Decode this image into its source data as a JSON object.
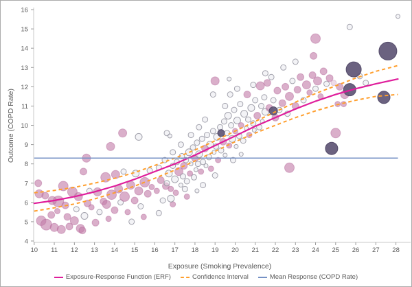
{
  "figure": {
    "background": "#ffffff",
    "border_color": "#ababab",
    "axis_line_color": "#c8c8c8",
    "tick_mark_color": "#999999",
    "tick_label_color": "#595959"
  },
  "chart_data": {
    "type": "scatter",
    "title": "",
    "xlabel": "Exposure (Smoking Prevalence)",
    "ylabel": "Outcome (COPD Rate)",
    "xlim": [
      10,
      28.5
    ],
    "ylim": [
      4,
      16
    ],
    "x_ticks": [
      10,
      11,
      12,
      13,
      14,
      15,
      16,
      17,
      18,
      19,
      20,
      21,
      22,
      23,
      24,
      25,
      26,
      27,
      28
    ],
    "y_ticks": [
      4,
      5,
      6,
      7,
      8,
      9,
      10,
      11,
      12,
      13,
      14,
      15,
      16
    ],
    "grid": false,
    "legend_position": "bottom",
    "erf": {
      "label": "Exposure-Response Function (ERF)",
      "color": "#df1d9b",
      "x": [
        10,
        11,
        12,
        13,
        14,
        15,
        16,
        17,
        18,
        19,
        20,
        21,
        22,
        23,
        24,
        25,
        26,
        27,
        28.1
      ],
      "y": [
        5.95,
        6.1,
        6.3,
        6.55,
        6.85,
        7.2,
        7.6,
        8.0,
        8.45,
        8.95,
        9.45,
        9.95,
        10.4,
        10.85,
        11.25,
        11.6,
        11.9,
        12.15,
        12.4
      ]
    },
    "ci": {
      "label": "Confidence Interval",
      "color": "#ff9e2c",
      "x": [
        10,
        11,
        12,
        13,
        14,
        15,
        16,
        17,
        18,
        19,
        20,
        21,
        22,
        23,
        24,
        25,
        26,
        27,
        28.1
      ],
      "upper": [
        6.5,
        6.62,
        6.78,
        7.0,
        7.25,
        7.55,
        7.92,
        8.3,
        8.72,
        9.2,
        9.7,
        10.2,
        10.7,
        11.2,
        11.65,
        12.05,
        12.45,
        12.8,
        13.1
      ],
      "lower": [
        5.55,
        5.72,
        5.92,
        6.18,
        6.5,
        6.85,
        7.25,
        7.68,
        8.15,
        8.65,
        9.15,
        9.6,
        10.0,
        10.4,
        10.75,
        11.05,
        11.3,
        11.5,
        11.6
      ]
    },
    "mean": {
      "label": "Mean Response (COPD Rate)",
      "color": "#7591c5",
      "value": 8.3,
      "x_range": [
        10,
        28.1
      ]
    },
    "point_styles": {
      "g": {
        "fill": "rgba(228,228,236,0.45)",
        "stroke": "rgba(148,148,160,0.85)"
      },
      "p": {
        "fill": "rgba(194,122,166,0.60)",
        "stroke": "rgba(178,100,150,0.45)"
      },
      "pl": {
        "fill": "rgba(219,176,203,0.45)",
        "stroke": "rgba(190,140,175,0.4)"
      },
      "d": {
        "fill": "rgba(94,85,117,0.92)",
        "stroke": "rgba(80,72,102,0.95)"
      }
    },
    "points": [
      [
        10.25,
        6.45,
        6,
        "p"
      ],
      [
        10.55,
        6.35,
        5,
        "p"
      ],
      [
        10.35,
        5.05,
        7,
        "p"
      ],
      [
        10.6,
        4.85,
        8,
        "p"
      ],
      [
        10.85,
        5.35,
        5,
        "p"
      ],
      [
        11.0,
        4.7,
        6,
        "p"
      ],
      [
        11.15,
        5.55,
        4,
        "p"
      ],
      [
        11.35,
        4.6,
        6,
        "p"
      ],
      [
        11.2,
        6.05,
        8,
        "p"
      ],
      [
        10.9,
        6.1,
        6,
        "p"
      ],
      [
        11.55,
        5.85,
        5,
        "p"
      ],
      [
        11.65,
        5.25,
        5,
        "p"
      ],
      [
        11.75,
        4.75,
        5,
        "p"
      ],
      [
        12.0,
        5.05,
        6,
        "p"
      ],
      [
        12.1,
        5.65,
        4,
        "g"
      ],
      [
        12.3,
        4.65,
        6,
        "p"
      ],
      [
        12.5,
        5.3,
        5,
        "g"
      ],
      [
        12.65,
        5.95,
        5,
        "p"
      ],
      [
        12.2,
        6.3,
        6,
        "p"
      ],
      [
        11.9,
        6.55,
        7,
        "p"
      ],
      [
        12.85,
        5.75,
        4,
        "p"
      ],
      [
        13.05,
        4.95,
        5,
        "p"
      ],
      [
        13.25,
        5.5,
        4,
        "g"
      ],
      [
        13.45,
        6.05,
        5,
        "p"
      ],
      [
        12.4,
        4.55,
        5,
        "p"
      ],
      [
        11.45,
        6.85,
        7,
        "p"
      ],
      [
        10.2,
        7.0,
        5,
        "p"
      ],
      [
        13.7,
        5.15,
        4,
        "p"
      ],
      [
        12.75,
        6.6,
        4,
        "g"
      ],
      [
        13.15,
        6.55,
        6,
        "p"
      ],
      [
        13.6,
        5.9,
        6,
        "p"
      ],
      [
        13.85,
        6.4,
        7,
        "p"
      ],
      [
        14.0,
        5.6,
        5,
        "p"
      ],
      [
        14.2,
        6.7,
        6,
        "p"
      ],
      [
        14.3,
        6.0,
        4,
        "g"
      ],
      [
        14.5,
        6.3,
        7,
        "p"
      ],
      [
        14.65,
        5.5,
        4,
        "p"
      ],
      [
        14.8,
        6.9,
        6,
        "p"
      ],
      [
        15.0,
        6.1,
        5,
        "p"
      ],
      [
        15.2,
        6.6,
        6,
        "p"
      ],
      [
        15.3,
        5.8,
        4,
        "g"
      ],
      [
        15.5,
        7.05,
        7,
        "p"
      ],
      [
        15.65,
        6.45,
        5,
        "p"
      ],
      [
        15.85,
        6.8,
        4,
        "p"
      ],
      [
        16.1,
        6.6,
        4,
        "p"
      ],
      [
        16.3,
        7.15,
        5,
        "p"
      ],
      [
        14.85,
        5.0,
        4,
        "g"
      ],
      [
        15.45,
        5.25,
        4,
        "p"
      ],
      [
        16.2,
        5.45,
        4,
        "g"
      ],
      [
        14.05,
        7.45,
        6,
        "p"
      ],
      [
        13.55,
        7.3,
        7,
        "p"
      ],
      [
        14.45,
        7.6,
        4,
        "g"
      ],
      [
        15.05,
        7.5,
        5,
        "g"
      ],
      [
        15.75,
        7.65,
        4,
        "g"
      ],
      [
        16.4,
        6.1,
        4,
        "g"
      ],
      [
        16.55,
        6.85,
        5,
        "p"
      ],
      [
        12.45,
        7.6,
        5,
        "p"
      ],
      [
        12.6,
        8.3,
        6,
        "p"
      ],
      [
        13.8,
        8.9,
        6,
        "p"
      ],
      [
        14.4,
        9.6,
        6,
        "p"
      ],
      [
        15.2,
        9.4,
        5,
        "g"
      ],
      [
        16.6,
        9.6,
        4,
        "g"
      ],
      [
        16.75,
        9.45,
        3,
        "g"
      ],
      [
        16.6,
        7.0,
        4,
        "g"
      ],
      [
        16.7,
        7.5,
        5,
        "g"
      ],
      [
        16.8,
        6.7,
        4,
        "p"
      ],
      [
        16.9,
        7.9,
        4,
        "g"
      ],
      [
        17.0,
        7.2,
        5,
        "g"
      ],
      [
        17.05,
        6.5,
        4,
        "p"
      ],
      [
        17.1,
        8.1,
        4,
        "g"
      ],
      [
        17.2,
        7.6,
        6,
        "p"
      ],
      [
        17.3,
        6.9,
        3,
        "g"
      ],
      [
        17.35,
        8.4,
        4,
        "g"
      ],
      [
        17.4,
        7.35,
        4,
        "g"
      ],
      [
        17.45,
        7.9,
        5,
        "p"
      ],
      [
        17.55,
        8.2,
        4,
        "g"
      ],
      [
        17.6,
        7.1,
        4,
        "g"
      ],
      [
        17.7,
        8.6,
        5,
        "g"
      ],
      [
        17.75,
        7.5,
        4,
        "p"
      ],
      [
        17.8,
        8.0,
        3,
        "g"
      ],
      [
        17.9,
        8.85,
        4,
        "g"
      ],
      [
        17.95,
        7.3,
        4,
        "g"
      ],
      [
        18.0,
        8.3,
        5,
        "p"
      ],
      [
        18.05,
        7.7,
        3,
        "g"
      ],
      [
        18.1,
        9.1,
        4,
        "g"
      ],
      [
        18.15,
        8.0,
        4,
        "g"
      ],
      [
        18.2,
        8.5,
        5,
        "g"
      ],
      [
        18.3,
        7.6,
        4,
        "p"
      ],
      [
        18.35,
        9.3,
        4,
        "g"
      ],
      [
        18.4,
        8.1,
        4,
        "g"
      ],
      [
        18.5,
        8.8,
        5,
        "p"
      ],
      [
        18.55,
        7.9,
        3,
        "g"
      ],
      [
        18.6,
        9.5,
        4,
        "g"
      ],
      [
        18.7,
        8.35,
        4,
        "g"
      ],
      [
        18.75,
        9.0,
        5,
        "g"
      ],
      [
        18.8,
        7.75,
        4,
        "p"
      ],
      [
        18.9,
        9.7,
        4,
        "g"
      ],
      [
        18.95,
        8.6,
        3,
        "g"
      ],
      [
        19.0,
        12.3,
        6,
        "p"
      ],
      [
        18.9,
        11.6,
        4,
        "g"
      ],
      [
        19.05,
        8.9,
        4,
        "g"
      ],
      [
        19.1,
        9.4,
        5,
        "g"
      ],
      [
        19.15,
        8.2,
        4,
        "p"
      ],
      [
        19.25,
        9.9,
        4,
        "g"
      ],
      [
        19.3,
        8.7,
        4,
        "g"
      ],
      [
        19.4,
        9.15,
        5,
        "p"
      ],
      [
        19.45,
        10.2,
        4,
        "g"
      ],
      [
        19.5,
        8.45,
        3,
        "g"
      ],
      [
        19.6,
        9.6,
        4,
        "g"
      ],
      [
        19.65,
        10.5,
        5,
        "g"
      ],
      [
        19.7,
        8.95,
        4,
        "p"
      ],
      [
        19.75,
        11.6,
        4,
        "g"
      ],
      [
        19.8,
        10.0,
        4,
        "g"
      ],
      [
        19.85,
        9.3,
        5,
        "g"
      ],
      [
        19.95,
        10.8,
        4,
        "g"
      ],
      [
        20.0,
        9.7,
        4,
        "p"
      ],
      [
        20.05,
        8.9,
        3,
        "g"
      ],
      [
        20.1,
        10.25,
        5,
        "g"
      ],
      [
        20.2,
        9.45,
        4,
        "g"
      ],
      [
        20.25,
        11.1,
        4,
        "g"
      ],
      [
        20.3,
        10.0,
        4,
        "p"
      ],
      [
        20.4,
        9.2,
        4,
        "g"
      ],
      [
        20.45,
        10.6,
        5,
        "g"
      ],
      [
        20.55,
        9.85,
        3,
        "g"
      ],
      [
        20.6,
        11.6,
        5,
        "p"
      ],
      [
        20.65,
        10.3,
        4,
        "g"
      ],
      [
        20.7,
        9.5,
        4,
        "p"
      ],
      [
        20.8,
        10.9,
        5,
        "g"
      ],
      [
        20.9,
        10.1,
        4,
        "g"
      ],
      [
        20.95,
        9.75,
        3,
        "g"
      ],
      [
        21.0,
        11.3,
        4,
        "g"
      ],
      [
        21.1,
        10.5,
        5,
        "p"
      ],
      [
        21.2,
        9.9,
        4,
        "g"
      ],
      [
        21.3,
        11.0,
        4,
        "g"
      ],
      [
        21.35,
        10.2,
        3,
        "g"
      ],
      [
        21.45,
        11.45,
        4,
        "g"
      ],
      [
        21.5,
        10.7,
        5,
        "g"
      ],
      [
        21.5,
        12.7,
        4,
        "g"
      ],
      [
        21.8,
        12.5,
        4,
        "g"
      ],
      [
        17.6,
        6.3,
        4,
        "p"
      ],
      [
        18.4,
        6.9,
        4,
        "g"
      ],
      [
        19.0,
        7.4,
        4,
        "g"
      ],
      [
        19.9,
        8.2,
        4,
        "g"
      ],
      [
        18.1,
        6.6,
        3,
        "g"
      ],
      [
        20.3,
        8.5,
        3,
        "g"
      ],
      [
        16.9,
        5.9,
        4,
        "p"
      ],
      [
        16.8,
        6.2,
        5,
        "g"
      ],
      [
        17.5,
        6.7,
        4,
        "g"
      ],
      [
        18.5,
        10.3,
        4,
        "g"
      ],
      [
        19.5,
        11.0,
        4,
        "g"
      ],
      [
        20.1,
        11.9,
        4,
        "g"
      ],
      [
        20.9,
        12.1,
        4,
        "g"
      ],
      [
        19.7,
        12.4,
        3,
        "g"
      ],
      [
        18.2,
        9.9,
        4,
        "g"
      ],
      [
        17.8,
        9.5,
        4,
        "g"
      ],
      [
        17.3,
        9.0,
        4,
        "g"
      ],
      [
        16.9,
        8.6,
        4,
        "g"
      ],
      [
        16.5,
        8.2,
        4,
        "g"
      ],
      [
        16.2,
        7.8,
        4,
        "g"
      ],
      [
        21.7,
        10.9,
        5,
        "p"
      ],
      [
        21.9,
        11.3,
        4,
        "g"
      ],
      [
        22.0,
        10.4,
        5,
        "p"
      ],
      [
        22.1,
        11.8,
        5,
        "p"
      ],
      [
        22.2,
        10.8,
        4,
        "g"
      ],
      [
        22.35,
        11.15,
        5,
        "p"
      ],
      [
        22.5,
        12.0,
        5,
        "p"
      ],
      [
        22.6,
        10.6,
        4,
        "g"
      ],
      [
        22.7,
        11.5,
        6,
        "p"
      ],
      [
        22.85,
        12.3,
        4,
        "g"
      ],
      [
        23.0,
        11.0,
        5,
        "p"
      ],
      [
        23.1,
        11.85,
        5,
        "p"
      ],
      [
        23.25,
        12.5,
        5,
        "p"
      ],
      [
        23.4,
        11.3,
        4,
        "g"
      ],
      [
        23.55,
        12.1,
        6,
        "p"
      ],
      [
        23.7,
        11.7,
        4,
        "p"
      ],
      [
        23.85,
        12.6,
        5,
        "p"
      ],
      [
        24.0,
        11.9,
        4,
        "g"
      ],
      [
        24.1,
        12.3,
        6,
        "p"
      ],
      [
        24.25,
        11.5,
        4,
        "p"
      ],
      [
        24.4,
        12.8,
        5,
        "p"
      ],
      [
        24.55,
        12.15,
        4,
        "g"
      ],
      [
        24.7,
        12.45,
        5,
        "p"
      ],
      [
        24.9,
        12.2,
        4,
        "pl"
      ],
      [
        25.2,
        12.0,
        5,
        "p"
      ],
      [
        25.45,
        11.6,
        6,
        "p"
      ],
      [
        25.1,
        11.1,
        4,
        "p"
      ],
      [
        25.4,
        11.1,
        4,
        "p"
      ],
      [
        26.5,
        12.2,
        4,
        "g"
      ],
      [
        26.2,
        12.55,
        4,
        "g"
      ],
      [
        22.4,
        13.0,
        4,
        "g"
      ],
      [
        23.0,
        13.3,
        4,
        "g"
      ],
      [
        21.25,
        12.05,
        6,
        "p"
      ],
      [
        21.6,
        12.2,
        5,
        "p"
      ],
      [
        24.0,
        14.5,
        7,
        "p"
      ],
      [
        23.9,
        13.6,
        5,
        "p"
      ],
      [
        25.7,
        15.1,
        4,
        "g"
      ],
      [
        28.1,
        15.65,
        3,
        "g"
      ],
      [
        22.7,
        7.8,
        7,
        "p"
      ],
      [
        25.0,
        9.6,
        7,
        "p"
      ],
      [
        19.3,
        9.6,
        5,
        "d"
      ],
      [
        21.9,
        10.75,
        6,
        "d"
      ],
      [
        24.8,
        8.8,
        9,
        "d"
      ],
      [
        25.7,
        11.85,
        9,
        "d"
      ],
      [
        27.4,
        11.45,
        9,
        "d"
      ],
      [
        25.9,
        12.9,
        11,
        "d"
      ],
      [
        27.6,
        13.85,
        13,
        "d"
      ]
    ]
  },
  "legend": {
    "items": [
      {
        "label": "Exposure-Response Function (ERF)",
        "color": "#df1d9b",
        "style": "solid"
      },
      {
        "label": "Confidence Interval",
        "color": "#ff9e2c",
        "style": "dashed"
      },
      {
        "label": "Mean Response (COPD Rate)",
        "color": "#7591c5",
        "style": "solid"
      }
    ]
  }
}
